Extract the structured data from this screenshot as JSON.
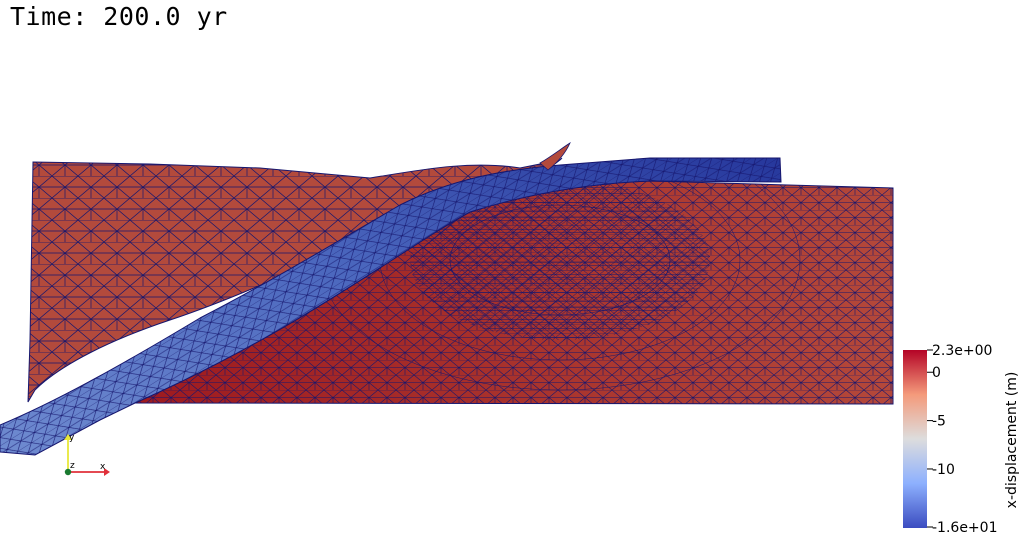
{
  "time_label": "Time: 200.0 yr",
  "colorbar": {
    "title": "x-displacement (m)",
    "ticks": [
      "2.3e+00",
      "0",
      "-5",
      "-10",
      "-1.6e+01"
    ],
    "tick_values": [
      2.3,
      0,
      -5,
      -10,
      -16
    ],
    "min": -16,
    "max": 2.3,
    "colors": [
      "#3b4cc0",
      "#8db0fe",
      "#dddddd",
      "#f49a7b",
      "#b40426"
    ]
  },
  "orientation_axes": {
    "x_label": "x",
    "y_label": "y",
    "z_label": "z",
    "x_color": "#e0303a",
    "y_color": "#e8e83a",
    "z_color": "#1a7a30"
  },
  "mesh": {
    "edge_color": "#16166e",
    "hanging_wall_color": "#b34a3c",
    "footwall_color": "#a52a2a",
    "slab_color": "#5f7fc6"
  }
}
